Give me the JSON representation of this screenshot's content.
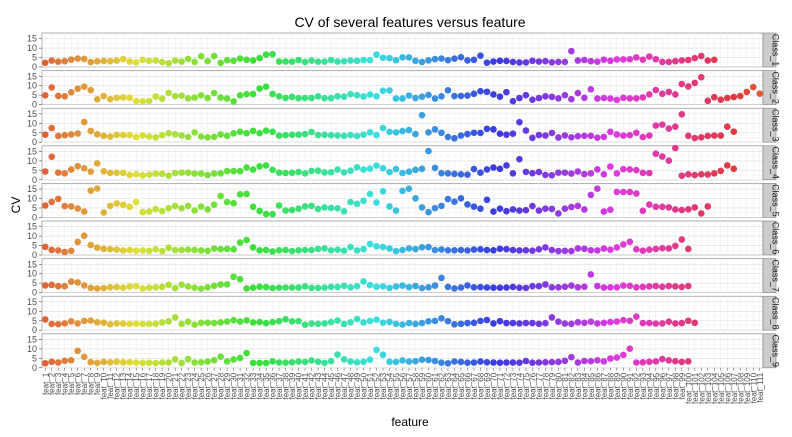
{
  "chart_data": {
    "type": "scatter",
    "title": "CV of several features versus feature",
    "xlabel": "feature",
    "ylabel": "CV",
    "ylim": [
      0,
      18
    ],
    "yticks": [
      0,
      5,
      10,
      15
    ],
    "grid": true,
    "legend": "none",
    "color_encoding": "hue by feature index (ggplot2 default palette)",
    "hue_start_color": "#F8766D",
    "facets": [
      {
        "name": "Class_1",
        "values": [
          2.2,
          3.4,
          2.8,
          3.1,
          3.9,
          4.5,
          4.3,
          2.6,
          3.0,
          3.2,
          3.1,
          3.4,
          4.2,
          2.9,
          2.4,
          3.8,
          3.2,
          3.4,
          2.6,
          2.0,
          3.4,
          2.9,
          4.3,
          2.7,
          5.7,
          3.1,
          5.8,
          2.2,
          3.6,
          3.3,
          4.5,
          3.8,
          3.5,
          4.7,
          6.6,
          6.8,
          2.9,
          2.9,
          2.8,
          3.7,
          2.7,
          3.4,
          2.8,
          2.9,
          3.7,
          2.9,
          3.0,
          3.4,
          3.3,
          3.7,
          3.6,
          6.6,
          4.9,
          4.7,
          3.6,
          5.1,
          5.1,
          3.3,
          2.6,
          3.5,
          4.2,
          4.5,
          3.6,
          4.4,
          5.2,
          3.5,
          3.8,
          6.0,
          2.3,
          2.9,
          3.3,
          3.2,
          2.7,
          2.4,
          2.4,
          3.3,
          2.9,
          3.1,
          2.5,
          2.7,
          2.7,
          8.4,
          3.4,
          3.7,
          3.1,
          2.8,
          3.9,
          3.3,
          4.0,
          4.0,
          4.1,
          5.1,
          3.9,
          5.5,
          4.1,
          2.7,
          2.7,
          3.1,
          3.5,
          3.7,
          4.7,
          5.8,
          3.4,
          3.8
        ]
      },
      {
        "name": "Class_2",
        "values": [
          4.9,
          9.1,
          4.6,
          4.4,
          6.5,
          8.4,
          9.5,
          7.7,
          2.8,
          4.5,
          2.9,
          3.6,
          3.8,
          3.6,
          1.8,
          1.7,
          1.9,
          4.3,
          3.1,
          6.2,
          4.5,
          4.7,
          3.3,
          3.7,
          4.9,
          3.5,
          6.1,
          3.7,
          3.2,
          1.7,
          4.9,
          5.5,
          5.6,
          8.5,
          9.5,
          5.6,
          4.4,
          3.5,
          4.1,
          3.4,
          3.5,
          3.5,
          4.4,
          3.4,
          3.4,
          4.4,
          4.2,
          5.5,
          5.0,
          4.3,
          5.3,
          4.4,
          7.3,
          7.5,
          3.2,
          3.2,
          4.8,
          3.5,
          4.2,
          5.1,
          3.2,
          4.4,
          7.6,
          4.5,
          4.6,
          4.8,
          5.7,
          7.1,
          6.8,
          5.4,
          4.2,
          6.6,
          1.8,
          3.5,
          5.0,
          2.6,
          3.5,
          4.4,
          4.1,
          3.3,
          5.0,
          2.9,
          6.1,
          3.6,
          8.1,
          3.2,
          3.5,
          3.2,
          2.5,
          3.6,
          3.3,
          3.3,
          3.8,
          5.4,
          7.7,
          5.7,
          6.7,
          5.4,
          10.9,
          9.6,
          11.5,
          14.5,
          2.0,
          3.9,
          2.6,
          3.5,
          4.0,
          4.5,
          6.7,
          9.3,
          5.8
        ]
      },
      {
        "name": "Class_3",
        "values": [
          4.0,
          7.5,
          3.3,
          3.7,
          4.1,
          4.6,
          10.7,
          6.0,
          4.2,
          3.4,
          3.0,
          3.9,
          3.8,
          3.8,
          2.7,
          3.6,
          3.0,
          2.6,
          3.7,
          4.7,
          4.2,
          3.6,
          2.8,
          5.2,
          3.0,
          2.6,
          2.8,
          4.1,
          3.4,
          4.7,
          5.5,
          4.8,
          6.0,
          4.8,
          6.1,
          5.5,
          3.5,
          3.7,
          3.9,
          4.0,
          4.3,
          5.4,
          3.8,
          3.9,
          3.7,
          3.6,
          3.4,
          3.8,
          3.3,
          4.0,
          5.2,
          3.8,
          7.5,
          5.5,
          5.2,
          5.9,
          6.4,
          4.3,
          14.3,
          5.2,
          6.8,
          5.0,
          2.8,
          2.1,
          3.5,
          4.3,
          5.0,
          4.9,
          7.1,
          6.8,
          4.5,
          4.0,
          4.5,
          10.6,
          6.2,
          2.3,
          3.8,
          3.5,
          4.9,
          2.5,
          3.6,
          2.6,
          3.2,
          3.4,
          3.4,
          2.4,
          2.8,
          5.5,
          4.1,
          3.5,
          3.7,
          5.0,
          2.7,
          3.5,
          8.8,
          9.3,
          7.2,
          8.2,
          14.8,
          3.4,
          2.2,
          2.6,
          3.3,
          3.5,
          3.5,
          8.2,
          5.6
        ]
      },
      {
        "name": "Class_4",
        "values": [
          4.4,
          12.2,
          3.8,
          3.4,
          5.4,
          7.2,
          6.1,
          4.3,
          8.7,
          4.5,
          3.7,
          3.7,
          3.7,
          2.6,
          2.9,
          2.4,
          2.7,
          3.2,
          3.2,
          2.2,
          3.6,
          3.8,
          3.8,
          3.3,
          3.3,
          2.5,
          3.3,
          3.4,
          4.6,
          4.6,
          4.6,
          6.5,
          5.4,
          7.1,
          7.6,
          5.3,
          3.8,
          3.6,
          3.7,
          4.1,
          3.4,
          4.7,
          4.8,
          3.9,
          4.0,
          5.4,
          3.9,
          4.8,
          6.6,
          5.4,
          5.9,
          7.5,
          6.1,
          4.1,
          5.7,
          3.6,
          4.3,
          5.3,
          5.8,
          15.2,
          6.3,
          3.5,
          3.4,
          3.1,
          2.9,
          2.7,
          5.7,
          3.8,
          5.5,
          6.5,
          5.8,
          7.6,
          3.4,
          10.9,
          4.2,
          3.5,
          4.1,
          2.6,
          2.4,
          3.8,
          3.8,
          3.3,
          4.4,
          3.0,
          3.4,
          5.5,
          2.9,
          7.0,
          3.4,
          5.6,
          5.5,
          5.1,
          3.7,
          3.6,
          13.8,
          12.3,
          10.1,
          16.8,
          2.2,
          2.9,
          2.5,
          2.9,
          2.8,
          3.4,
          4.7,
          7.6,
          5.8
        ]
      },
      {
        "name": "Class_5",
        "values": [
          6.3,
          8.2,
          9.8,
          6.0,
          5.8,
          4.7,
          3.1,
          14.2,
          15.3,
          2.6,
          6.1,
          7.4,
          6.7,
          5.6,
          8.1,
          2.8,
          3.1,
          4.4,
          3.3,
          4.9,
          6.0,
          4.8,
          6.1,
          3.7,
          5.7,
          4.2,
          6.7,
          11.3,
          8.1,
          7.5,
          12.2,
          12.4,
          5.6,
          3.4,
          1.8,
          1.7,
          6.3,
          3.6,
          3.9,
          4.6,
          5.8,
          6.1,
          4.5,
          5.3,
          5.0,
          4.8,
          3.2,
          8.1,
          7.2,
          8.8,
          12.4,
          7.9,
          13.8,
          5.8,
          3.6,
          14.0,
          15.2,
          10.1,
          5.3,
          2.8,
          4.9,
          6.1,
          9.7,
          8.3,
          10.1,
          6.9,
          5.7,
          4.6,
          9.3,
          3.1,
          4.6,
          3.3,
          4.2,
          3.6,
          3.8,
          6.0,
          3.6,
          4.6,
          4.5,
          2.1,
          4.6,
          5.5,
          6.1,
          4.2,
          11.9,
          15.2,
          3.1,
          4.1,
          13.5,
          13.4,
          13.4,
          12.6,
          3.5,
          6.8,
          5.6,
          5.6,
          5.3,
          4.2,
          3.9,
          4.3,
          5.3,
          2.1,
          5.8
        ]
      },
      {
        "name": "Class_6",
        "values": [
          4.3,
          2.7,
          2.4,
          1.6,
          2.2,
          6.9,
          10.2,
          5.3,
          3.9,
          3.2,
          3.1,
          2.9,
          2.4,
          2.6,
          2.3,
          2.4,
          2.2,
          3.0,
          2.1,
          3.8,
          2.6,
          2.6,
          2.8,
          2.7,
          2.4,
          2.2,
          3.4,
          3.1,
          3.2,
          3.0,
          6.6,
          7.9,
          4.0,
          2.5,
          2.6,
          1.9,
          2.5,
          2.6,
          2.1,
          2.5,
          2.6,
          2.6,
          3.2,
          3.5,
          2.5,
          2.8,
          2.3,
          4.2,
          2.4,
          3.1,
          5.8,
          4.6,
          4.2,
          3.4,
          2.1,
          2.6,
          3.5,
          3.1,
          4.1,
          4.2,
          2.6,
          2.9,
          2.5,
          2.5,
          2.6,
          2.4,
          2.9,
          3.0,
          2.6,
          2.5,
          3.3,
          3.1,
          2.6,
          2.4,
          2.5,
          2.3,
          3.0,
          4.0,
          2.6,
          2.1,
          2.2,
          2.1,
          3.5,
          3.3,
          2.5,
          2.4,
          3.4,
          2.8,
          4.0,
          5.6,
          7.0,
          3.0,
          2.3,
          2.8,
          3.2,
          3.6,
          3.5,
          4.8,
          8.2,
          3.2
        ]
      },
      {
        "name": "Class_7",
        "values": [
          3.8,
          4.1,
          3.4,
          3.4,
          5.8,
          5.4,
          3.8,
          2.5,
          2.2,
          2.4,
          2.8,
          2.9,
          2.6,
          3.2,
          3.4,
          2.2,
          2.6,
          2.8,
          3.0,
          4.1,
          2.4,
          4.2,
          3.2,
          2.6,
          2.1,
          2.8,
          3.6,
          4.3,
          4.4,
          8.4,
          7.1,
          2.2,
          2.6,
          3.1,
          2.9,
          2.4,
          2.6,
          2.7,
          2.7,
          2.7,
          3.3,
          2.5,
          2.5,
          2.7,
          3.0,
          3.0,
          3.6,
          2.8,
          3.4,
          5.9,
          4.0,
          3.1,
          3.3,
          2.5,
          3.2,
          3.7,
          2.9,
          3.5,
          2.4,
          2.8,
          3.7,
          7.8,
          3.0,
          2.2,
          2.7,
          3.8,
          2.8,
          2.9,
          2.7,
          2.6,
          2.6,
          2.7,
          3.0,
          2.6,
          2.5,
          3.4,
          3.4,
          4.3,
          2.8,
          2.8,
          3.1,
          3.7,
          2.8,
          3.1,
          9.6,
          3.5,
          2.7,
          2.8,
          2.8,
          3.7,
          3.6,
          2.8,
          3.0,
          3.3,
          3.5,
          3.1,
          3.5,
          3.3,
          3.0,
          3.5
        ]
      },
      {
        "name": "Class_8",
        "values": [
          5.7,
          3.3,
          3.2,
          3.6,
          4.7,
          3.6,
          4.9,
          5.1,
          4.2,
          4.0,
          3.1,
          3.6,
          3.5,
          3.3,
          3.5,
          3.3,
          3.3,
          3.4,
          4.1,
          4.7,
          6.8,
          3.4,
          4.5,
          2.9,
          3.9,
          4.0,
          3.8,
          4.2,
          4.6,
          5.3,
          4.6,
          5.2,
          4.1,
          4.3,
          3.7,
          4.3,
          4.8,
          5.8,
          4.7,
          4.8,
          2.9,
          3.5,
          3.4,
          3.6,
          4.3,
          5.1,
          3.3,
          4.2,
          5.9,
          4.1,
          4.9,
          5.6,
          4.0,
          4.4,
          3.4,
          3.0,
          3.8,
          3.3,
          3.8,
          4.7,
          4.9,
          6.3,
          4.8,
          3.1,
          3.4,
          3.8,
          3.9,
          4.9,
          5.4,
          3.6,
          4.8,
          3.8,
          3.8,
          3.6,
          3.8,
          3.8,
          3.4,
          3.7,
          6.8,
          4.5,
          3.5,
          3.4,
          4.2,
          3.9,
          4.5,
          3.6,
          3.9,
          4.3,
          4.6,
          5.3,
          5.0,
          7.2,
          3.8,
          3.8,
          3.5,
          3.6,
          4.5,
          3.6,
          3.8,
          5.0,
          3.9
        ]
      },
      {
        "name": "Class_9",
        "values": [
          2.4,
          3.2,
          2.8,
          3.7,
          4.0,
          9.0,
          5.8,
          3.0,
          2.6,
          3.1,
          2.9,
          3.2,
          2.9,
          2.9,
          2.8,
          2.6,
          2.7,
          2.5,
          2.8,
          2.8,
          4.5,
          2.5,
          4.6,
          2.8,
          2.9,
          3.3,
          4.0,
          5.9,
          3.4,
          4.4,
          5.2,
          7.8,
          2.6,
          2.6,
          2.5,
          3.4,
          2.8,
          2.7,
          2.9,
          3.3,
          3.1,
          3.9,
          3.2,
          2.6,
          3.5,
          7.0,
          4.5,
          3.3,
          2.9,
          3.2,
          4.3,
          9.5,
          6.9,
          3.2,
          3.1,
          3.9,
          3.3,
          3.5,
          4.3,
          4.1,
          3.6,
          2.7,
          2.4,
          3.3,
          3.1,
          2.7,
          2.8,
          3.3,
          2.9,
          2.8,
          2.7,
          2.8,
          2.8,
          2.7,
          3.6,
          2.7,
          2.8,
          2.9,
          3.0,
          3.1,
          3.7,
          5.6,
          2.8,
          3.6,
          3.5,
          4.0,
          3.4,
          4.9,
          5.4,
          6.8,
          10.1,
          2.8,
          2.9,
          3.2,
          3.4,
          4.6,
          3.9,
          3.5,
          3.1,
          3.4
        ]
      }
    ]
  }
}
